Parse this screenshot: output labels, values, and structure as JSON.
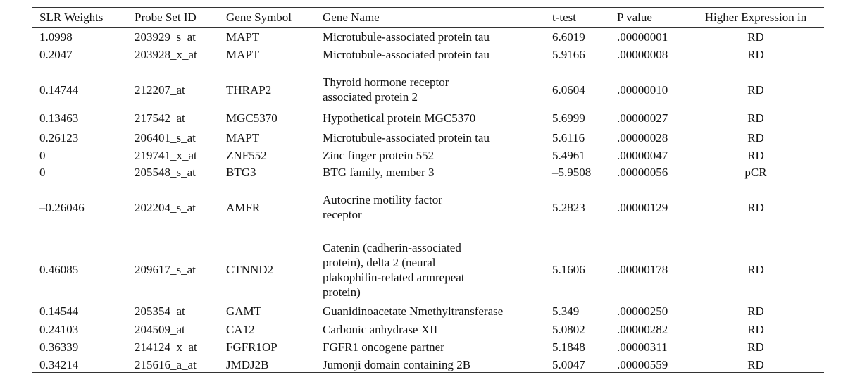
{
  "columns": [
    "SLR Weights",
    "Probe Set ID",
    "Gene Symbol",
    "Gene Name",
    "t-test",
    "P value",
    "Higher Expression in"
  ],
  "rows": [
    {
      "slr": "1.0998",
      "probe": "203929_s_at",
      "symbol": "MAPT",
      "name": [
        "Microtubule-associated protein tau"
      ],
      "t": "6.6019",
      "p": ".00000001",
      "higher": "RD"
    },
    {
      "slr": "0.2047",
      "probe": "203928_x_at",
      "symbol": "MAPT",
      "name": [
        "Microtubule-associated protein tau"
      ],
      "t": "5.9166",
      "p": ".00000008",
      "higher": "RD"
    },
    {
      "slr": "0.14744",
      "probe": "212207_at",
      "symbol": "THRAP2",
      "name": [
        "Thyroid hormone receptor",
        "associated protein 2"
      ],
      "t": "6.0604",
      "p": ".00000010",
      "higher": "RD"
    },
    {
      "slr": "0.13463",
      "probe": "217542_at",
      "symbol": "MGC5370",
      "name": [
        "Hypothetical protein MGC5370"
      ],
      "t": "5.6999",
      "p": ".00000027",
      "higher": "RD"
    },
    {
      "slr": "0.26123",
      "probe": "206401_s_at",
      "symbol": "MAPT",
      "name": [
        "Microtubule-associated protein tau"
      ],
      "t": "5.6116",
      "p": ".00000028",
      "higher": "RD"
    },
    {
      "slr": "0",
      "probe": "219741_x_at",
      "symbol": "ZNF552",
      "name": [
        "Zinc finger protein 552"
      ],
      "t": "5.4961",
      "p": ".00000047",
      "higher": "RD"
    },
    {
      "slr": "0",
      "probe": "205548_s_at",
      "symbol": "BTG3",
      "name": [
        "BTG family, member 3"
      ],
      "t": "–5.9508",
      "p": ".00000056",
      "higher": "pCR"
    },
    {
      "slr": "–0.26046",
      "probe": "202204_s_at",
      "symbol": "AMFR",
      "name": [
        "Autocrine motility factor",
        "receptor"
      ],
      "t": "5.2823",
      "p": ".00000129",
      "higher": "RD"
    },
    {
      "slr": "0.46085",
      "probe": "209617_s_at",
      "symbol": "CTNND2",
      "name": [
        "Catenin (cadherin-associated",
        "protein), delta 2 (neural",
        "plakophilin-related armrepeat",
        "protein)"
      ],
      "t": "5.1606",
      "p": ".00000178",
      "higher": "RD"
    },
    {
      "slr": "0.14544",
      "probe": "205354_at",
      "symbol": "GAMT",
      "name": [
        "Guanidinoacetate Nmethyltransferase"
      ],
      "t": "5.349",
      "p": ".00000250",
      "higher": "RD"
    },
    {
      "slr": "0.24103",
      "probe": "204509_at",
      "symbol": "CA12",
      "name": [
        "Carbonic anhydrase XII"
      ],
      "t": "5.0802",
      "p": ".00000282",
      "higher": "RD"
    },
    {
      "slr": "0.36339",
      "probe": "214124_x_at",
      "symbol": "FGFR1OP",
      "name": [
        "FGFR1 oncogene partner"
      ],
      "t": "5.1848",
      "p": ".00000311",
      "higher": "RD"
    },
    {
      "slr": "0.34214",
      "probe": "215616_a_at",
      "symbol": "JMDJ2B",
      "name": [
        "Jumonji domain containing 2B"
      ],
      "t": "5.0047",
      "p": ".00000559",
      "higher": "RD"
    }
  ]
}
